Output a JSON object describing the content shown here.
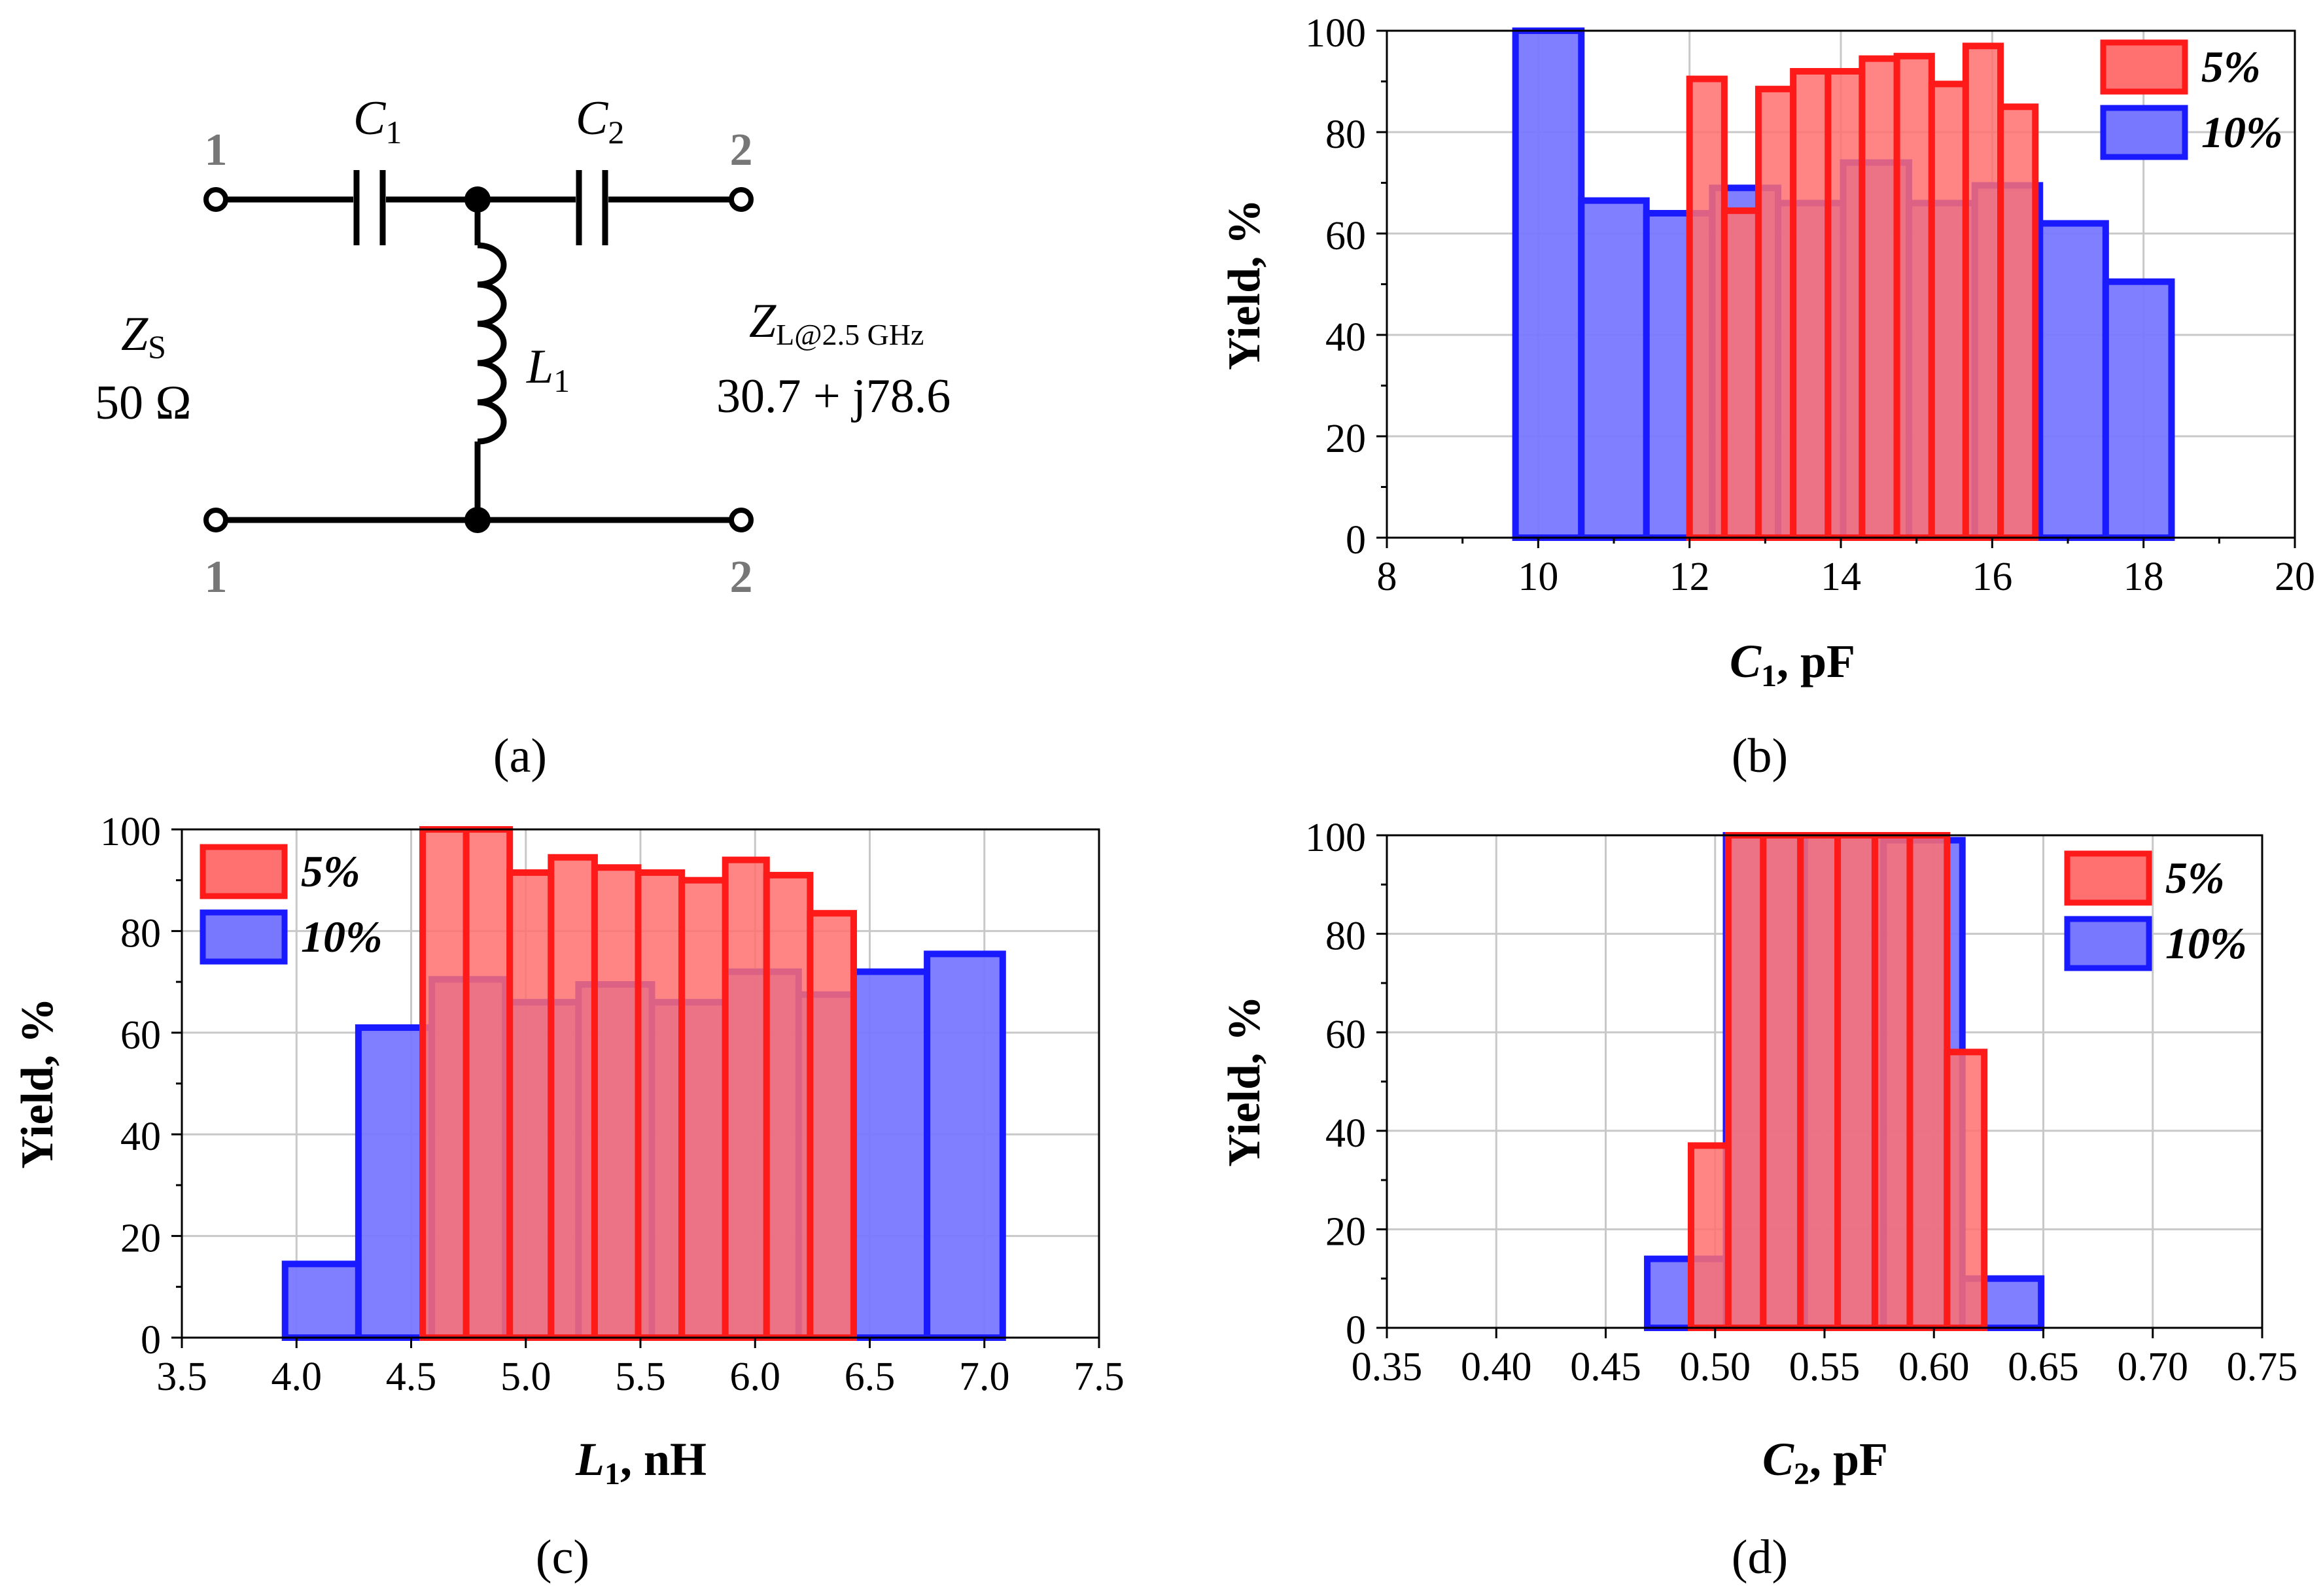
{
  "colors": {
    "red": "#ff1a1a",
    "red_fill": "#ff7070",
    "blue": "#1a1aff",
    "blue_fill": "#7878ff",
    "grid": "#c8c8c8"
  },
  "circuit": {
    "port_1_top": "1",
    "port_1_bottom": "1",
    "port_2_top": "2",
    "port_2_bottom": "2",
    "c1_label": "C",
    "c1_sub": "1",
    "c2_label": "C",
    "c2_sub": "2",
    "l1_label": "L",
    "l1_sub": "1",
    "zs_label": "Z",
    "zs_sub": "S",
    "zs_value": "50 Ω",
    "zl_label": "Z",
    "zl_sub": "L@2.5 GHz",
    "zl_value": "30.7 + j78.6"
  },
  "captions": {
    "a": "(a)",
    "b": "(b)",
    "c": "(c)",
    "d": "(d)"
  },
  "chart_data": [
    {
      "id": "b",
      "type": "bar",
      "xlabel_var": "C",
      "xlabel_sub": "1",
      "xlabel_unit": ", pF",
      "ylabel": "Yield, %",
      "xlim": [
        8,
        20
      ],
      "ylim": [
        0,
        100
      ],
      "xticks": [
        8,
        10,
        12,
        14,
        16,
        18,
        20
      ],
      "xtick_labels": [
        "8",
        "10",
        "12",
        "14",
        "16",
        "18",
        "20"
      ],
      "yticks": [
        0,
        20,
        40,
        60,
        80,
        100
      ],
      "ytick_labels": [
        "0",
        "20",
        "40",
        "60",
        "80",
        "100"
      ],
      "legend": [
        "5%",
        "10%"
      ],
      "legend_position": "top-right",
      "series": [
        {
          "name": "10%",
          "color": "blue",
          "bins": [
            {
              "x0": 9.7,
              "x1": 10.57,
              "y": 100
            },
            {
              "x0": 10.57,
              "x1": 11.43,
              "y": 66.5
            },
            {
              "x0": 11.43,
              "x1": 12.3,
              "y": 64
            },
            {
              "x0": 12.3,
              "x1": 13.17,
              "y": 69
            },
            {
              "x0": 13.17,
              "x1": 14.03,
              "y": 66
            },
            {
              "x0": 14.03,
              "x1": 14.9,
              "y": 74
            },
            {
              "x0": 14.9,
              "x1": 15.77,
              "y": 66
            },
            {
              "x0": 15.77,
              "x1": 16.63,
              "y": 69.5
            },
            {
              "x0": 16.63,
              "x1": 17.5,
              "y": 62
            },
            {
              "x0": 17.5,
              "x1": 18.37,
              "y": 50.5
            }
          ]
        },
        {
          "name": "5%",
          "color": "red",
          "bins": [
            {
              "x0": 12.0,
              "x1": 12.46,
              "y": 90.5
            },
            {
              "x0": 12.46,
              "x1": 12.91,
              "y": 64.5
            },
            {
              "x0": 12.91,
              "x1": 13.37,
              "y": 88.5
            },
            {
              "x0": 13.37,
              "x1": 13.83,
              "y": 92
            },
            {
              "x0": 13.83,
              "x1": 14.28,
              "y": 92
            },
            {
              "x0": 14.28,
              "x1": 14.74,
              "y": 94.5
            },
            {
              "x0": 14.74,
              "x1": 15.2,
              "y": 95
            },
            {
              "x0": 15.2,
              "x1": 15.65,
              "y": 89.5
            },
            {
              "x0": 15.65,
              "x1": 16.11,
              "y": 97
            },
            {
              "x0": 16.11,
              "x1": 16.57,
              "y": 85
            }
          ]
        }
      ]
    },
    {
      "id": "c",
      "type": "bar",
      "xlabel_var": "L",
      "xlabel_sub": "1",
      "xlabel_unit": ", nH",
      "ylabel": "Yield, %",
      "xlim": [
        3.5,
        7.5
      ],
      "ylim": [
        0,
        100
      ],
      "xticks": [
        3.5,
        4.0,
        4.5,
        5.0,
        5.5,
        6.0,
        6.5,
        7.0,
        7.5
      ],
      "xtick_labels": [
        "3.5",
        "4.0",
        "4.5",
        "5.0",
        "5.5",
        "6.0",
        "6.5",
        "7.0",
        "7.5"
      ],
      "yticks": [
        0,
        20,
        40,
        60,
        80,
        100
      ],
      "ytick_labels": [
        "0",
        "20",
        "40",
        "60",
        "80",
        "100"
      ],
      "legend": [
        "5%",
        "10%"
      ],
      "legend_position": "top-left",
      "series": [
        {
          "name": "10%",
          "color": "blue",
          "bins": [
            {
              "x0": 3.95,
              "x1": 4.27,
              "y": 14.5
            },
            {
              "x0": 4.27,
              "x1": 4.59,
              "y": 61
            },
            {
              "x0": 4.59,
              "x1": 4.91,
              "y": 70.5
            },
            {
              "x0": 4.91,
              "x1": 5.23,
              "y": 66
            },
            {
              "x0": 5.23,
              "x1": 5.55,
              "y": 69.5
            },
            {
              "x0": 5.55,
              "x1": 5.87,
              "y": 66
            },
            {
              "x0": 5.87,
              "x1": 6.19,
              "y": 72
            },
            {
              "x0": 6.19,
              "x1": 6.43,
              "y": 67.5
            },
            {
              "x0": 6.43,
              "x1": 6.75,
              "y": 72
            },
            {
              "x0": 6.75,
              "x1": 7.08,
              "y": 75.5
            }
          ]
        },
        {
          "name": "5%",
          "color": "red",
          "bins": [
            {
              "x0": 4.55,
              "x1": 4.74,
              "y": 100
            },
            {
              "x0": 4.74,
              "x1": 4.93,
              "y": 100
            },
            {
              "x0": 4.93,
              "x1": 5.11,
              "y": 91.5
            },
            {
              "x0": 5.11,
              "x1": 5.3,
              "y": 94.5
            },
            {
              "x0": 5.3,
              "x1": 5.49,
              "y": 92.5
            },
            {
              "x0": 5.49,
              "x1": 5.68,
              "y": 91.5
            },
            {
              "x0": 5.68,
              "x1": 5.87,
              "y": 90
            },
            {
              "x0": 5.87,
              "x1": 6.05,
              "y": 94
            },
            {
              "x0": 6.05,
              "x1": 6.24,
              "y": 91
            },
            {
              "x0": 6.24,
              "x1": 6.43,
              "y": 83.5
            }
          ]
        }
      ]
    },
    {
      "id": "d",
      "type": "bar",
      "xlabel_var": "C",
      "xlabel_sub": "2",
      "xlabel_unit": ", pF",
      "ylabel": "Yield, %",
      "xlim": [
        0.35,
        0.75
      ],
      "ylim": [
        0,
        100
      ],
      "xticks": [
        0.35,
        0.4,
        0.45,
        0.5,
        0.55,
        0.6,
        0.65,
        0.7,
        0.75
      ],
      "xtick_labels": [
        "0.35",
        "0.40",
        "0.45",
        "0.50",
        "0.55",
        "0.60",
        "0.65",
        "0.70",
        "0.75"
      ],
      "yticks": [
        0,
        20,
        40,
        60,
        80,
        100
      ],
      "ytick_labels": [
        "0",
        "20",
        "40",
        "60",
        "80",
        "100"
      ],
      "legend": [
        "5%",
        "10%"
      ],
      "legend_position": "top-right",
      "series": [
        {
          "name": "10%",
          "color": "blue",
          "bins": [
            {
              "x0": 0.361,
              "x1": 0.397,
              "y": 0
            },
            {
              "x0": 0.397,
              "x1": 0.433,
              "y": 0
            },
            {
              "x0": 0.433,
              "x1": 0.469,
              "y": 0
            },
            {
              "x0": 0.469,
              "x1": 0.505,
              "y": 14
            },
            {
              "x0": 0.505,
              "x1": 0.541,
              "y": 100
            },
            {
              "x0": 0.541,
              "x1": 0.577,
              "y": 100
            },
            {
              "x0": 0.577,
              "x1": 0.613,
              "y": 99
            },
            {
              "x0": 0.613,
              "x1": 0.649,
              "y": 10
            },
            {
              "x0": 0.649,
              "x1": 0.685,
              "y": 0
            },
            {
              "x0": 0.685,
              "x1": 0.721,
              "y": 0
            }
          ]
        },
        {
          "name": "5%",
          "color": "red",
          "bins": [
            {
              "x0": 0.455,
              "x1": 0.472,
              "y": 0
            },
            {
              "x0": 0.472,
              "x1": 0.489,
              "y": 0
            },
            {
              "x0": 0.489,
              "x1": 0.506,
              "y": 37
            },
            {
              "x0": 0.506,
              "x1": 0.522,
              "y": 100
            },
            {
              "x0": 0.522,
              "x1": 0.539,
              "y": 100
            },
            {
              "x0": 0.539,
              "x1": 0.556,
              "y": 100
            },
            {
              "x0": 0.556,
              "x1": 0.573,
              "y": 100
            },
            {
              "x0": 0.573,
              "x1": 0.589,
              "y": 100
            },
            {
              "x0": 0.589,
              "x1": 0.606,
              "y": 100
            },
            {
              "x0": 0.606,
              "x1": 0.623,
              "y": 56
            }
          ]
        }
      ]
    }
  ]
}
